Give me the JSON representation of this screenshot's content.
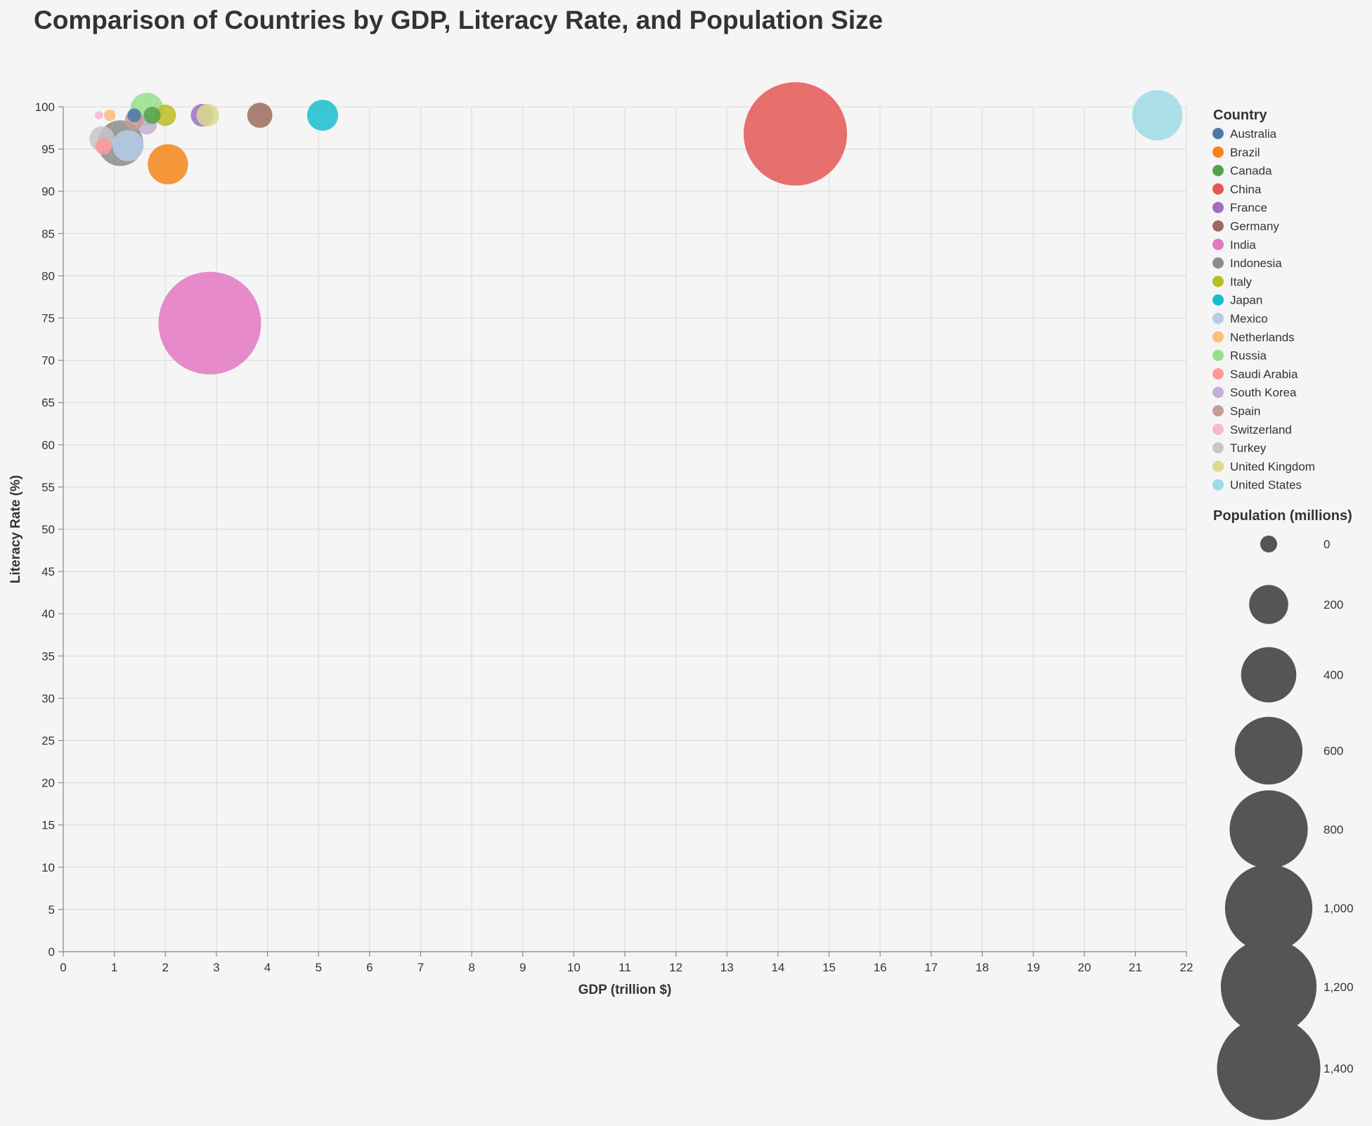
{
  "chart_data": {
    "type": "scatter",
    "title": "Comparison of Countries by GDP, Literacy Rate, and Population Size",
    "xlabel": "GDP (trillion $)",
    "ylabel": "Literacy Rate (%)",
    "xlim": [
      0,
      22
    ],
    "ylim": [
      0,
      100
    ],
    "x_ticks": [
      0,
      1,
      2,
      3,
      4,
      5,
      6,
      7,
      8,
      9,
      10,
      11,
      12,
      13,
      14,
      15,
      16,
      17,
      18,
      19,
      20,
      21,
      22
    ],
    "y_ticks": [
      0,
      5,
      10,
      15,
      20,
      25,
      30,
      35,
      40,
      45,
      50,
      55,
      60,
      65,
      70,
      75,
      80,
      85,
      90,
      95,
      100
    ],
    "grid": true,
    "legend_position": "right",
    "color_legend_title": "Country",
    "size_legend_title": "Population (millions)",
    "size_legend_values": [
      0,
      200,
      400,
      600,
      800,
      1000,
      1200,
      1400
    ],
    "size_legend_labels": [
      "0",
      "200",
      "400",
      "600",
      "800",
      "1,000",
      "1,200",
      "1,400"
    ],
    "size_legend_color": "#555555",
    "points": [
      {
        "country": "Australia",
        "gdp": 1.39,
        "literacy": 99,
        "population": 25,
        "color": "#4c78a8"
      },
      {
        "country": "Brazil",
        "gdp": 2.05,
        "literacy": 93.2,
        "population": 212,
        "color": "#f58518"
      },
      {
        "country": "Canada",
        "gdp": 1.74,
        "literacy": 99,
        "population": 38,
        "color": "#54a24b"
      },
      {
        "country": "China",
        "gdp": 14.34,
        "literacy": 96.8,
        "population": 1400,
        "color": "#e45756"
      },
      {
        "country": "France",
        "gdp": 2.72,
        "literacy": 99,
        "population": 67,
        "color": "#9c6fc0"
      },
      {
        "country": "Germany",
        "gdp": 3.85,
        "literacy": 99,
        "population": 83,
        "color": "#9d6b5d"
      },
      {
        "country": "India",
        "gdp": 2.87,
        "literacy": 74.4,
        "population": 1380,
        "color": "#e377c2"
      },
      {
        "country": "Indonesia",
        "gdp": 1.12,
        "literacy": 95.7,
        "population": 273,
        "color": "#8c8c8c"
      },
      {
        "country": "Italy",
        "gdp": 2.0,
        "literacy": 99,
        "population": 60,
        "color": "#bcbd22"
      },
      {
        "country": "Japan",
        "gdp": 5.08,
        "literacy": 99,
        "population": 126,
        "color": "#17becf"
      },
      {
        "country": "Mexico",
        "gdp": 1.27,
        "literacy": 95.4,
        "population": 128,
        "color": "#b5cde9"
      },
      {
        "country": "Netherlands",
        "gdp": 0.91,
        "literacy": 99,
        "population": 17,
        "color": "#ffbb78"
      },
      {
        "country": "Russia",
        "gdp": 1.64,
        "literacy": 99.7,
        "population": 145,
        "color": "#98df8a"
      },
      {
        "country": "Saudi Arabia",
        "gdp": 0.79,
        "literacy": 95.3,
        "population": 35,
        "color": "#ff9896"
      },
      {
        "country": "South Korea",
        "gdp": 1.64,
        "literacy": 97.9,
        "population": 52,
        "color": "#c5b0d5"
      },
      {
        "country": "Spain",
        "gdp": 1.39,
        "literacy": 98.4,
        "population": 47,
        "color": "#c49c94"
      },
      {
        "country": "Switzerland",
        "gdp": 0.7,
        "literacy": 99,
        "population": 9,
        "color": "#f7b6d2"
      },
      {
        "country": "Turkey",
        "gdp": 0.76,
        "literacy": 96.2,
        "population": 84,
        "color": "#c7c7c7"
      },
      {
        "country": "United Kingdom",
        "gdp": 2.83,
        "literacy": 99,
        "population": 67,
        "color": "#dbdb8d"
      },
      {
        "country": "United States",
        "gdp": 21.43,
        "literacy": 99,
        "population": 331,
        "color": "#9edae5"
      }
    ]
  }
}
